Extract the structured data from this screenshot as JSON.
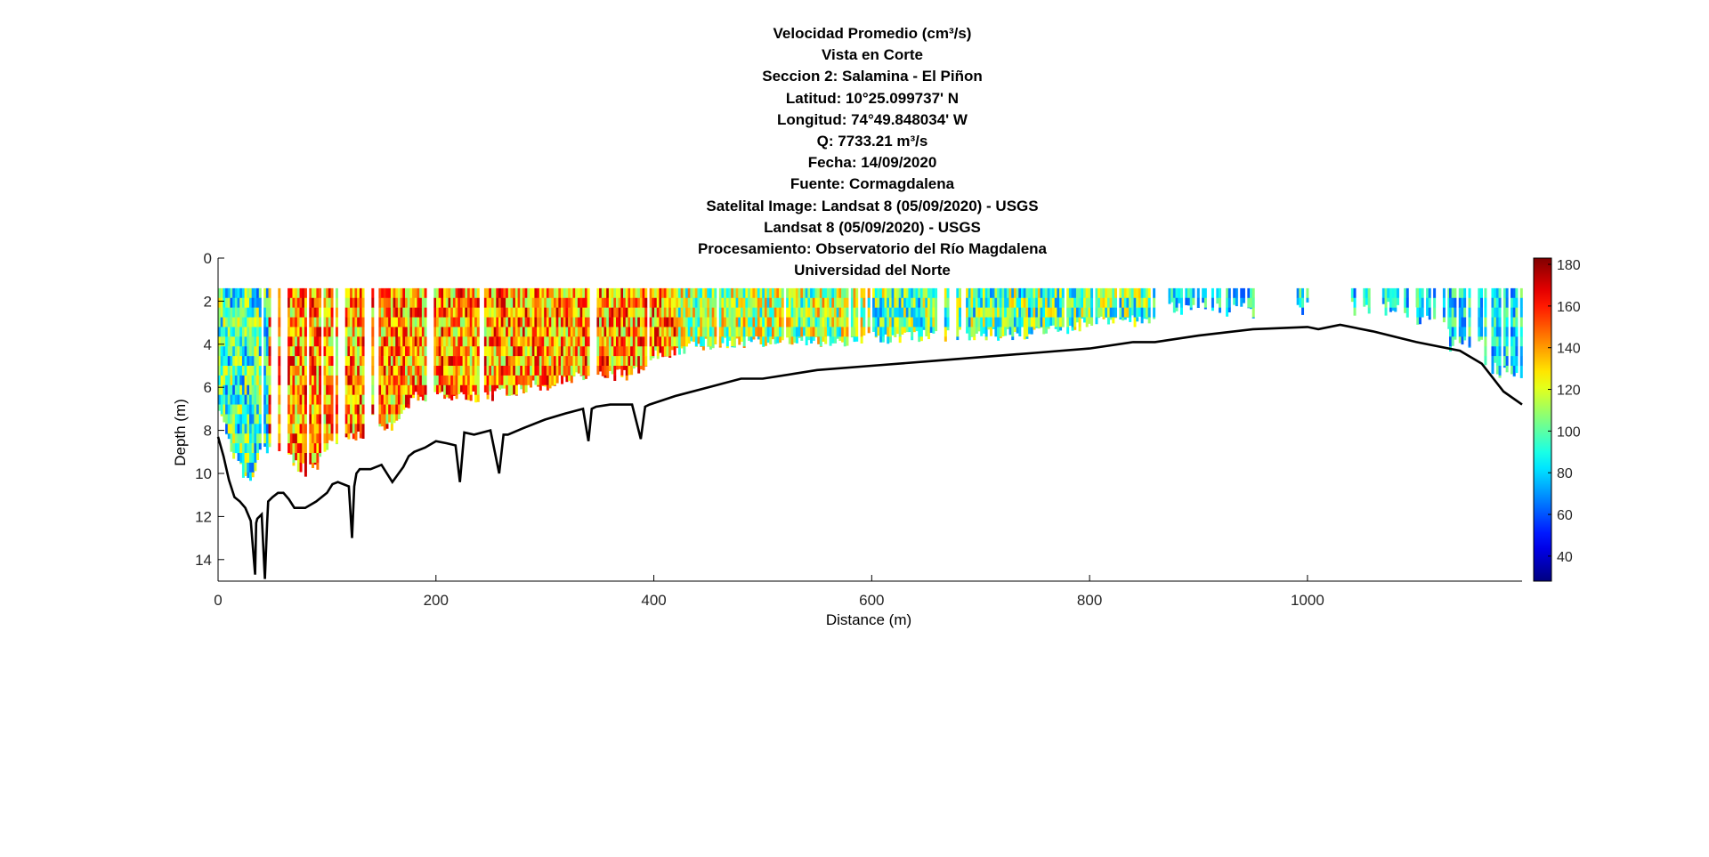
{
  "chart_data": {
    "type": "heatmap",
    "title_lines": [
      "Velocidad Promedio (cm³/s)",
      "Vista en Corte",
      "Seccion 2: Salamina - El Piñon",
      "Latitud: 10°25.099737' N",
      "Longitud: 74°49.848034' W",
      "Q: 7733.21 m³/s",
      "Fecha: 14/09/2020",
      "Fuente: Cormagdalena",
      "Satelital Image: Landsat 8 (05/09/2020) - USGS",
      "Landsat 8 (05/09/2020) - USGS",
      "Procesamiento: Observatorio del Río Magdalena",
      "Universidad del Norte"
    ],
    "xlabel": "Distance (m)",
    "ylabel": "Depth (m)",
    "xlim": [
      0,
      1197
    ],
    "ylim": [
      15,
      0
    ],
    "y_reversed": true,
    "xticks": [
      0,
      200,
      400,
      600,
      800,
      1000
    ],
    "yticks": [
      0,
      2,
      4,
      6,
      8,
      10,
      12,
      14
    ],
    "colorbar": {
      "min": 28,
      "max": 183,
      "ticks": [
        40,
        60,
        80,
        100,
        120,
        140,
        160,
        180
      ],
      "colormap": "jet"
    },
    "velocity_top_depth": 1.4,
    "velocity_column_bottoms": {
      "x": [
        0,
        5,
        10,
        15,
        20,
        25,
        30,
        35,
        40,
        45,
        60,
        70,
        80,
        90,
        100,
        110,
        120,
        130,
        140,
        150,
        160,
        170,
        180,
        190,
        200,
        210,
        250,
        280,
        300,
        320,
        340,
        380,
        400,
        430,
        470,
        500,
        550,
        600,
        650,
        700,
        760,
        800,
        850,
        860
      ],
      "depth": [
        7.2,
        7.9,
        8.6,
        9.3,
        9.8,
        10.3,
        10.0,
        9.5,
        8.8,
        8.8,
        8.9,
        9.6,
        9.9,
        9.6,
        8.7,
        8.9,
        8.3,
        8.3,
        7.5,
        7.9,
        7.9,
        7.2,
        6.5,
        6.4,
        6.4,
        6.4,
        6.4,
        6.0,
        5.9,
        5.6,
        5.4,
        5.4,
        4.5,
        4.1,
        3.9,
        3.9,
        3.9,
        3.7,
        3.6,
        3.6,
        3.4,
        3.0,
        2.9,
        2.9
      ]
    },
    "velocity_sparse_segments": [
      {
        "x": [
          870,
          950
        ],
        "bottom_depth": 2.4
      },
      {
        "x": [
          990,
          1000
        ],
        "bottom_depth": 2.4
      },
      {
        "x": [
          1040,
          1100
        ],
        "bottom_depth": 2.4
      },
      {
        "x": [
          1100,
          1130
        ],
        "bottom_depth": 3.0
      },
      {
        "x": [
          1130,
          1160
        ],
        "bottom_depth": 4.0
      },
      {
        "x": [
          1160,
          1197
        ],
        "bottom_depth": 5.2
      }
    ],
    "bed_profile": {
      "x": [
        0,
        5,
        10,
        15,
        20,
        25,
        30,
        34,
        35,
        36,
        40,
        43,
        45,
        46,
        50,
        55,
        60,
        65,
        70,
        80,
        90,
        100,
        105,
        110,
        120,
        123,
        125,
        127,
        130,
        140,
        150,
        160,
        170,
        175,
        180,
        190,
        200,
        210,
        218,
        222,
        226,
        235,
        250,
        258,
        262,
        266,
        280,
        300,
        320,
        335,
        340,
        343,
        347,
        360,
        380,
        388,
        392,
        396,
        420,
        450,
        480,
        500,
        550,
        600,
        650,
        700,
        750,
        800,
        840,
        860,
        900,
        950,
        1000,
        1010,
        1030,
        1060,
        1100,
        1140,
        1160,
        1180,
        1197
      ],
      "depth": [
        8.3,
        9.2,
        10.3,
        11.1,
        11.3,
        11.6,
        12.2,
        14.7,
        12.3,
        12.1,
        11.9,
        14.9,
        12.3,
        11.3,
        11.1,
        10.9,
        10.9,
        11.2,
        11.6,
        11.6,
        11.3,
        10.9,
        10.5,
        10.4,
        10.6,
        13.0,
        10.6,
        10.0,
        9.8,
        9.8,
        9.6,
        10.4,
        9.7,
        9.2,
        9.0,
        8.8,
        8.5,
        8.6,
        8.7,
        10.4,
        8.1,
        8.2,
        8.0,
        10.0,
        8.2,
        8.2,
        7.9,
        7.5,
        7.2,
        7.0,
        8.5,
        7.0,
        6.9,
        6.8,
        6.8,
        8.4,
        6.9,
        6.8,
        6.4,
        6.0,
        5.6,
        5.6,
        5.2,
        5.0,
        4.8,
        4.6,
        4.4,
        4.2,
        3.9,
        3.9,
        3.6,
        3.3,
        3.2,
        3.3,
        3.1,
        3.4,
        3.9,
        4.3,
        4.9,
        6.2,
        6.8
      ]
    }
  }
}
